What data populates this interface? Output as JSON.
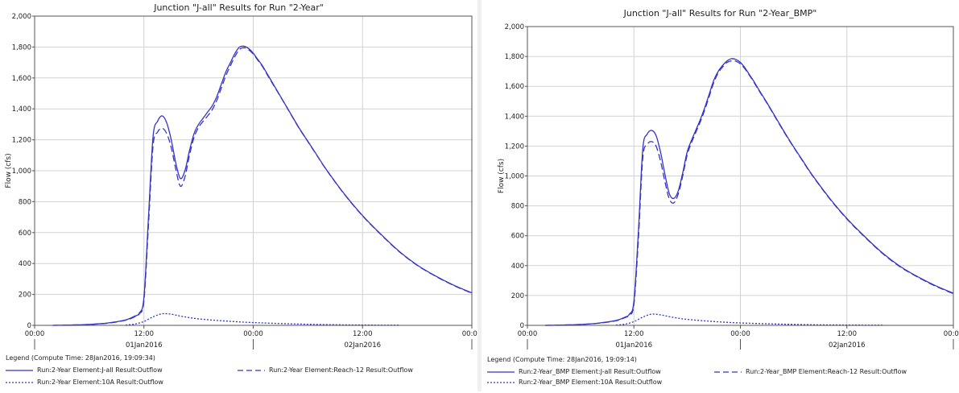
{
  "charts": [
    {
      "title": "Junction \"J-all\" Results for Run \"2-Year\"",
      "ylabel": "Flow (cfs)",
      "legend_header": "Legend (Compute Time: 28Jan2016, 19:09:34)",
      "legend": [
        {
          "label": "Run:2-Year Element:J-all Result:Outflow",
          "style": "solid"
        },
        {
          "label": "Run:2-Year Element:Reach-12 Result:Outflow",
          "style": "dashed"
        },
        {
          "label": "Run:2-Year Element:10A Result:Outflow",
          "style": "dotted"
        }
      ]
    },
    {
      "title": "Junction \"J-all\" Results for Run \"2-Year_BMP\"",
      "ylabel": "Flow (cfs)",
      "legend_header": "Legend (Compute Time: 28Jan2016, 19:09:14)",
      "legend": [
        {
          "label": "Run:2-Year_BMP Element:J-all Result:Outflow",
          "style": "solid"
        },
        {
          "label": "Run:2-Year_BMP Element:Reach-12 Result:Outflow",
          "style": "dashed"
        },
        {
          "label": "Run:2-Year_BMP Element:10A Result:Outflow",
          "style": "dotted"
        }
      ]
    }
  ],
  "chart_data": [
    {
      "type": "line",
      "title": "Junction \"J-all\" Results for Run \"2-Year\"",
      "ylabel": "Flow (cfs)",
      "xlim": [
        0,
        48
      ],
      "ylim": [
        0,
        2000
      ],
      "yticks": [
        0,
        200,
        400,
        600,
        800,
        1000,
        1200,
        1400,
        1600,
        1800,
        2000
      ],
      "ytick_labels": [
        "0",
        "200",
        "400",
        "600",
        "800",
        "1,000",
        "1,200",
        "1,400",
        "1,600",
        "1,800",
        "2,000"
      ],
      "xticks": [
        0,
        12,
        24,
        36,
        48
      ],
      "xtick_labels": [
        "00:00",
        "12:00",
        "00:00",
        "12:00",
        "00:00"
      ],
      "date_labels": [
        {
          "x": 12,
          "label": "01Jan2016"
        },
        {
          "x": 36,
          "label": "02Jan2016"
        }
      ],
      "date_separators": [
        0,
        24,
        48
      ],
      "grid": true,
      "legend_position": "bottom",
      "series": [
        {
          "name": "Run:2-Year Element:J-all Result:Outflow",
          "color": "#3434c8",
          "style": "solid",
          "x": [
            2,
            4,
            6,
            8,
            10,
            11,
            11.5,
            12,
            12.5,
            13,
            13.5,
            14,
            14.5,
            15,
            15.5,
            16,
            16.5,
            17,
            17.5,
            18,
            18.5,
            19,
            19.5,
            20,
            20.5,
            21,
            21.5,
            22,
            22.5,
            23,
            23.5,
            24,
            24.5,
            25,
            25.5,
            26,
            27,
            28,
            29,
            30,
            31,
            32,
            34,
            36,
            38,
            40,
            42,
            44,
            46,
            48
          ],
          "y": [
            0,
            2,
            6,
            15,
            35,
            60,
            80,
            180,
            700,
            1220,
            1320,
            1355,
            1310,
            1200,
            1050,
            950,
            1000,
            1130,
            1240,
            1300,
            1340,
            1380,
            1420,
            1480,
            1560,
            1640,
            1700,
            1760,
            1800,
            1805,
            1790,
            1760,
            1720,
            1680,
            1630,
            1580,
            1480,
            1380,
            1280,
            1190,
            1100,
            1010,
            850,
            710,
            590,
            480,
            390,
            320,
            260,
            210
          ]
        },
        {
          "name": "Run:2-Year Element:Reach-12 Result:Outflow",
          "color": "#3434c8",
          "style": "dashed",
          "x": [
            2,
            4,
            6,
            8,
            10,
            11,
            11.5,
            12,
            12.5,
            13,
            13.5,
            14,
            14.5,
            15,
            15.5,
            16,
            16.5,
            17,
            17.5,
            18,
            18.5,
            19,
            19.5,
            20,
            20.5,
            21,
            21.5,
            22,
            22.5,
            23,
            23.5,
            24,
            24.5,
            25,
            25.5,
            26,
            27,
            28,
            29,
            30,
            31,
            32,
            34,
            36,
            38,
            40,
            42,
            44,
            46,
            48
          ],
          "y": [
            0,
            2,
            6,
            14,
            33,
            56,
            75,
            160,
            650,
            1160,
            1250,
            1275,
            1240,
            1150,
            1010,
            900,
            960,
            1100,
            1215,
            1280,
            1320,
            1355,
            1395,
            1455,
            1535,
            1615,
            1680,
            1740,
            1785,
            1795,
            1782,
            1755,
            1715,
            1675,
            1625,
            1575,
            1478,
            1378,
            1278,
            1188,
            1098,
            1008,
            848,
            708,
            588,
            478,
            388,
            318,
            258,
            208
          ]
        },
        {
          "name": "Run:2-Year Element:10A Result:Outflow",
          "color": "#3434c8",
          "style": "dotted",
          "x": [
            10,
            11,
            12,
            13,
            14,
            15,
            16,
            17,
            18,
            20,
            22,
            24,
            28,
            32,
            36,
            40
          ],
          "y": [
            2,
            8,
            25,
            55,
            75,
            72,
            60,
            50,
            42,
            32,
            24,
            18,
            10,
            5,
            2,
            1
          ]
        }
      ]
    },
    {
      "type": "line",
      "title": "Junction \"J-all\" Results for Run \"2-Year_BMP\"",
      "ylabel": "Flow (cfs)",
      "xlim": [
        0,
        48
      ],
      "ylim": [
        0,
        2000
      ],
      "yticks": [
        0,
        200,
        400,
        600,
        800,
        1000,
        1200,
        1400,
        1600,
        1800,
        2000
      ],
      "ytick_labels": [
        "0",
        "200",
        "400",
        "600",
        "800",
        "1,000",
        "1,200",
        "1,400",
        "1,600",
        "1,800",
        "2,000"
      ],
      "xticks": [
        0,
        12,
        24,
        36,
        48
      ],
      "xtick_labels": [
        "00:00",
        "12:00",
        "00:00",
        "12:00",
        "00:00"
      ],
      "date_labels": [
        {
          "x": 12,
          "label": "01Jan2016"
        },
        {
          "x": 36,
          "label": "02Jan2016"
        }
      ],
      "date_separators": [
        0,
        24,
        48
      ],
      "grid": true,
      "legend_position": "bottom",
      "series": [
        {
          "name": "Run:2-Year_BMP Element:J-all Result:Outflow",
          "color": "#3434c8",
          "style": "solid",
          "x": [
            2,
            4,
            6,
            8,
            10,
            11,
            11.5,
            12,
            12.5,
            13,
            13.5,
            14,
            14.5,
            15,
            15.5,
            16,
            16.5,
            17,
            17.5,
            18,
            18.5,
            19,
            19.5,
            20,
            20.5,
            21,
            21.5,
            22,
            22.5,
            23,
            23.5,
            24,
            24.5,
            25,
            25.5,
            26,
            27,
            28,
            29,
            30,
            31,
            32,
            34,
            36,
            38,
            40,
            42,
            44,
            46,
            48
          ],
          "y": [
            0,
            2,
            6,
            15,
            33,
            55,
            75,
            160,
            620,
            1180,
            1280,
            1305,
            1270,
            1160,
            1010,
            880,
            850,
            900,
            1020,
            1160,
            1240,
            1310,
            1380,
            1460,
            1550,
            1640,
            1700,
            1740,
            1770,
            1785,
            1780,
            1760,
            1725,
            1680,
            1635,
            1585,
            1490,
            1390,
            1290,
            1195,
            1105,
            1015,
            855,
            715,
            595,
            485,
            395,
            325,
            265,
            215
          ]
        },
        {
          "name": "Run:2-Year_BMP Element:Reach-12 Result:Outflow",
          "color": "#3434c8",
          "style": "dashed",
          "x": [
            2,
            4,
            6,
            8,
            10,
            11,
            11.5,
            12,
            12.5,
            13,
            13.5,
            14,
            14.5,
            15,
            15.5,
            16,
            16.5,
            17,
            17.5,
            18,
            18.5,
            19,
            19.5,
            20,
            20.5,
            21,
            21.5,
            22,
            22.5,
            23,
            23.5,
            24,
            24.5,
            25,
            25.5,
            26,
            27,
            28,
            29,
            30,
            31,
            32,
            34,
            36,
            38,
            40,
            42,
            44,
            46,
            48
          ],
          "y": [
            0,
            2,
            6,
            14,
            31,
            52,
            70,
            140,
            570,
            1120,
            1210,
            1230,
            1200,
            1100,
            960,
            845,
            820,
            880,
            1000,
            1140,
            1225,
            1295,
            1365,
            1445,
            1535,
            1625,
            1690,
            1730,
            1760,
            1770,
            1768,
            1750,
            1718,
            1675,
            1630,
            1580,
            1486,
            1386,
            1286,
            1192,
            1102,
            1012,
            852,
            712,
            592,
            482,
            392,
            322,
            262,
            212
          ]
        },
        {
          "name": "Run:2-Year_BMP Element:10A Result:Outflow",
          "color": "#3434c8",
          "style": "dotted",
          "x": [
            10,
            11,
            12,
            13,
            14,
            15,
            16,
            17,
            18,
            20,
            22,
            24,
            28,
            32,
            36,
            40
          ],
          "y": [
            2,
            8,
            25,
            55,
            75,
            70,
            58,
            48,
            40,
            30,
            22,
            16,
            9,
            4,
            2,
            1
          ]
        }
      ]
    }
  ]
}
